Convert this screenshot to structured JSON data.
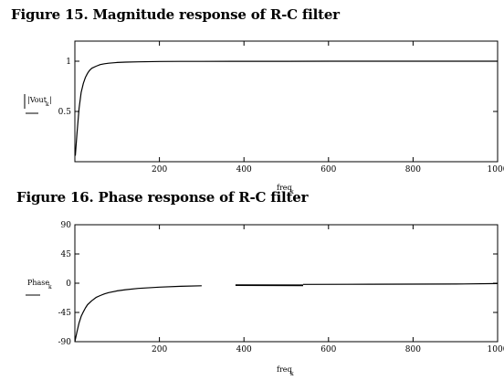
{
  "chart_data": [
    {
      "type": "line",
      "title": "Figure 15. Magnitude response of R-C filter",
      "xlabel": "freq",
      "xlabel_subscript": "k",
      "ylabel": "|Vout",
      "ylabel_subscript": "k",
      "ylabel_suffix": "|",
      "xlim": [
        0,
        1000
      ],
      "ylim": [
        0,
        1.2
      ],
      "xticks": [
        200,
        400,
        600,
        800,
        1000
      ],
      "yticks": [
        0.5,
        1
      ],
      "ytick_labels": [
        "0.5",
        "1"
      ],
      "grid": false,
      "series": [
        {
          "x": [
            1,
            5,
            10,
            15,
            20,
            25,
            30,
            35,
            40,
            50,
            60,
            70,
            80,
            100,
            120,
            150,
            200,
            250,
            300,
            400,
            500,
            600,
            700,
            800,
            900,
            1000
          ],
          "y": [
            0.06,
            0.28,
            0.53,
            0.69,
            0.78,
            0.84,
            0.88,
            0.91,
            0.93,
            0.95,
            0.966,
            0.975,
            0.98,
            0.987,
            0.991,
            0.994,
            0.997,
            0.998,
            0.9985,
            0.999,
            0.9995,
            0.9996,
            0.9997,
            0.9998,
            0.9999,
            1.0
          ]
        }
      ]
    },
    {
      "type": "line",
      "title": "Figure 16. Phase response of R-C filter",
      "xlabel": "freq",
      "xlabel_subscript": "k",
      "ylabel": "Phase",
      "ylabel_subscript": "k",
      "xlim": [
        0,
        1000
      ],
      "ylim": [
        -90,
        90
      ],
      "xticks": [
        200,
        400,
        600,
        800,
        1000
      ],
      "yticks": [
        -90,
        -45,
        0,
        45,
        90
      ],
      "ytick_labels": [
        "-90",
        "-45",
        "0",
        "45",
        "90"
      ],
      "grid": false,
      "series": [
        {
          "x": [
            0,
            5,
            10,
            15,
            20,
            25,
            30,
            40,
            50,
            60,
            70,
            80,
            100,
            120,
            150,
            200,
            250,
            300
          ],
          "y": [
            -90,
            -75,
            -61,
            -51,
            -44,
            -38,
            -33,
            -27,
            -22,
            -19,
            -16.5,
            -14.5,
            -11.8,
            -10,
            -8,
            -6,
            -4.8,
            -4
          ]
        },
        {
          "x": [
            380,
            540
          ],
          "y": [
            -3,
            -3.2
          ]
        },
        {
          "x": [
            540,
            700,
            900,
            1000
          ],
          "y": [
            -1.8,
            -1.6,
            -1.3,
            -0.5
          ]
        }
      ]
    }
  ]
}
